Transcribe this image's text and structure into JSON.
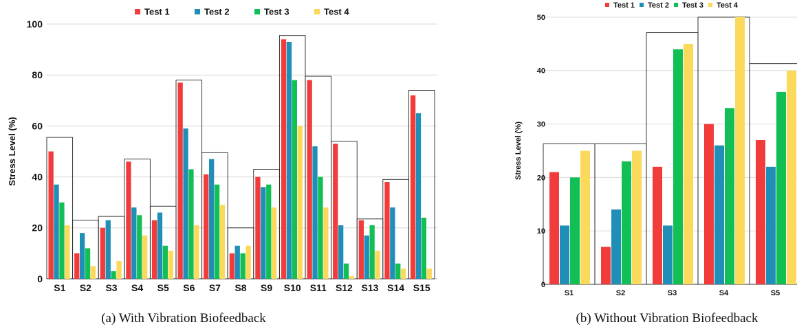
{
  "chart_data": [
    {
      "type": "bar",
      "caption": "(a) With Vibration Biofeedback",
      "ylabel": "Stress Level (%)",
      "xlabel": "",
      "ylim": [
        0,
        100
      ],
      "yticks": [
        0,
        20,
        40,
        60,
        80,
        100
      ],
      "grid": true,
      "legend_position": "top",
      "categories": [
        "S1",
        "S2",
        "S3",
        "S4",
        "S5",
        "S6",
        "S7",
        "S8",
        "S9",
        "S10",
        "S11",
        "S12",
        "S13",
        "S14",
        "S15"
      ],
      "series": [
        {
          "name": "Test 1",
          "color": "#f23b3b",
          "values": [
            50,
            10,
            20,
            46,
            23,
            77,
            41,
            10,
            40,
            94,
            78,
            53,
            23,
            38,
            72
          ]
        },
        {
          "name": "Test 2",
          "color": "#1f8fb8",
          "values": [
            37,
            18,
            23,
            28,
            26,
            59,
            47,
            13,
            36,
            93,
            52,
            21,
            17,
            28,
            65
          ]
        },
        {
          "name": "Test 3",
          "color": "#12bf55",
          "values": [
            30,
            12,
            3,
            25,
            13,
            43,
            37,
            10,
            37,
            78,
            40,
            6,
            21,
            6,
            24
          ]
        },
        {
          "name": "Test 4",
          "color": "#fbd95a",
          "values": [
            21,
            5,
            7,
            17,
            11,
            21,
            29,
            13,
            28,
            60,
            28,
            1,
            11,
            4,
            4
          ]
        }
      ],
      "group_box_values": [
        55.5,
        23,
        24.5,
        47,
        28.5,
        78,
        49.5,
        20,
        43,
        95.5,
        79.5,
        54,
        23.5,
        39,
        74
      ]
    },
    {
      "type": "bar",
      "caption": "(b) Without Vibration Biofeedback",
      "ylabel": "Stress Level (%)",
      "xlabel": "",
      "ylim": [
        0,
        50
      ],
      "yticks": [
        0,
        10,
        20,
        30,
        40,
        50
      ],
      "grid": true,
      "legend_position": "top",
      "categories": [
        "S1",
        "S2",
        "S3",
        "S4",
        "S5"
      ],
      "series": [
        {
          "name": "Test 1",
          "color": "#f23b3b",
          "values": [
            21,
            7,
            22,
            30,
            27
          ]
        },
        {
          "name": "Test 2",
          "color": "#1f8fb8",
          "values": [
            11,
            14,
            11,
            26,
            22
          ]
        },
        {
          "name": "Test 3",
          "color": "#12bf55",
          "values": [
            20,
            23,
            44,
            33,
            36
          ]
        },
        {
          "name": "Test 4",
          "color": "#fbd95a",
          "values": [
            25,
            25,
            45,
            50,
            40
          ]
        }
      ],
      "group_box_values": [
        26.3,
        26.3,
        47.1,
        50,
        41.3
      ]
    }
  ]
}
